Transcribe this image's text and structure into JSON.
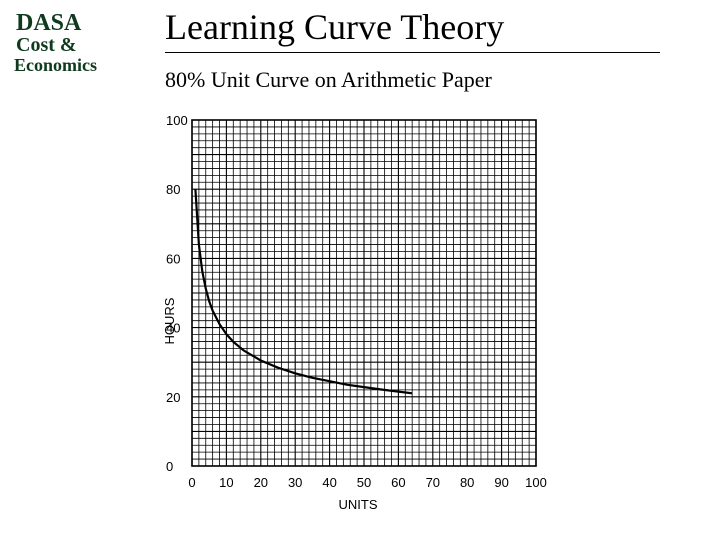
{
  "logo": {
    "line1": "DASA",
    "line2": "Cost &",
    "line3": "Economics",
    "color": "#0f3a1e"
  },
  "header": {
    "title": "Learning Curve Theory"
  },
  "chart_data": {
    "type": "line",
    "title": "80% Unit Curve on Arithmetic Paper",
    "xlabel": "UNITS",
    "ylabel": "HOURS",
    "xlim": [
      0,
      100
    ],
    "ylim": [
      0,
      100
    ],
    "xticks": [
      "0",
      "10",
      "20",
      "30",
      "40",
      "50",
      "60",
      "70",
      "80",
      "90",
      "100"
    ],
    "yticks": [
      "0",
      "20",
      "40",
      "60",
      "80",
      "100"
    ],
    "grid": true,
    "series": [
      {
        "x": [
          1,
          2,
          3,
          4,
          5,
          6,
          8,
          10,
          12,
          15,
          20,
          25,
          30,
          35,
          40,
          45,
          50,
          55,
          60,
          64
        ],
        "y": [
          80,
          64,
          56.2,
          51.2,
          47.6,
          44.9,
          41,
          38.1,
          35.9,
          33.4,
          30.5,
          28.4,
          26.8,
          25.5,
          24.5,
          23.5,
          22.8,
          22.1,
          21.5,
          21
        ]
      }
    ]
  }
}
